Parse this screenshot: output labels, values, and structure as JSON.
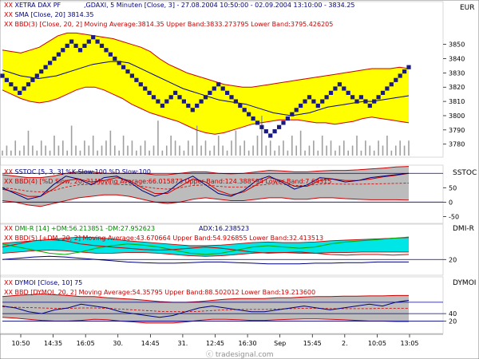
{
  "header": {
    "instrument": "XETRA DAX PF",
    "series_desc": ",GDAXI, 5 Minuten [Close, 3] - 27.08.2004 10:50:00 - 02.09.2004 13:10:00 - 3834.25",
    "currency": "EUR",
    "sma_legend": "SMA [Close, 20] 3814.35",
    "bbd_legend": "BBD(3) [Close, 20, 2] Moving Average:3814.35 Upper Band:3833.273795 Lower Band:3795.426205"
  },
  "panels": {
    "sstoc": {
      "name": "SSTOC",
      "legend1": "SSTOC [5, 3, 3] %K Slow:100 %D Slow:100",
      "legend2": "BBD(4) [%D Slow, 20, 2] Moving Average:66.015873 Upper Band:124.388594 Lower Band:7.64315"
    },
    "dmi": {
      "name": "DMI-R",
      "legend1": "DMI-R [14] +DM:56.213851 -DM:27.952623",
      "adx": "ADX:16.238523",
      "legend2": "BBD(5) [+DM, 20, 2] Moving Average:43.670664 Upper Band:54.926855 Lower Band:32.413513"
    },
    "dymoi": {
      "name": "DYMOI",
      "legend1": "DYMOI [Close, 10] 75",
      "legend2": "BBD [DYMOI, 20, 2] Moving Average:54.35795 Upper Band:88.502012 Lower Band:19.213600"
    }
  },
  "watermark": "tradesignal.com",
  "colors": {
    "band_fill": "#ffff00",
    "band_line": "#cc0000",
    "price_box": "#1a1a80",
    "sma": "#000080",
    "volume": "#a0a0a0",
    "grey_band": "#bcbcbc",
    "cyan_band": "#00e5e5",
    "plus_dm": "#00aa00",
    "minus_dm": "#cc0000",
    "adx": "#000080"
  },
  "chart_data": [
    {
      "type": "line",
      "title": "XETRA DAX PF ,GDAXI, 5 Minuten",
      "ylabel": "EUR",
      "ylim": [
        3772,
        3861
      ],
      "y_ticks": [
        3780,
        3790,
        3800,
        3810,
        3820,
        3830,
        3840,
        3850
      ],
      "x_tick_labels": [
        "10:50",
        "14:35",
        "16:05",
        "30.",
        "14:45",
        "31.",
        "12:45",
        "16:30",
        "Sep",
        "15:45",
        "2.",
        "10:05",
        "13:05"
      ],
      "series": [
        {
          "name": "Close",
          "values": [
            3828,
            3825,
            3822,
            3819,
            3816,
            3819,
            3822,
            3825,
            3828,
            3831,
            3834,
            3837,
            3840,
            3843,
            3846,
            3849,
            3852,
            3849,
            3846,
            3849,
            3852,
            3855,
            3852,
            3849,
            3846,
            3843,
            3840,
            3837,
            3834,
            3831,
            3828,
            3825,
            3822,
            3819,
            3816,
            3813,
            3810,
            3807,
            3810,
            3813,
            3816,
            3813,
            3810,
            3807,
            3804,
            3807,
            3810,
            3813,
            3816,
            3819,
            3822,
            3819,
            3816,
            3813,
            3810,
            3807,
            3804,
            3801,
            3798,
            3795,
            3792,
            3789,
            3786,
            3789,
            3792,
            3795,
            3798,
            3801,
            3804,
            3807,
            3810,
            3813,
            3810,
            3807,
            3810,
            3813,
            3816,
            3819,
            3822,
            3819,
            3816,
            3813,
            3810,
            3813,
            3810,
            3807,
            3810,
            3813,
            3816,
            3819,
            3822,
            3825,
            3828,
            3831,
            3834
          ]
        },
        {
          "name": "SMA",
          "values": [
            3832,
            3830,
            3828,
            3827,
            3826,
            3827,
            3828,
            3830,
            3832,
            3834,
            3836,
            3837,
            3838,
            3838,
            3837,
            3834,
            3831,
            3828,
            3825,
            3822,
            3819,
            3817,
            3815,
            3813,
            3811,
            3810,
            3809,
            3808,
            3806,
            3804,
            3802,
            3801,
            3800,
            3801,
            3802,
            3804,
            3806,
            3807,
            3808,
            3809,
            3810,
            3810,
            3811,
            3812,
            3813,
            3814
          ]
        },
        {
          "name": "Upper Band",
          "values": [
            3846,
            3845,
            3844,
            3846,
            3848,
            3852,
            3856,
            3858,
            3858,
            3857,
            3856,
            3855,
            3854,
            3852,
            3850,
            3848,
            3845,
            3840,
            3836,
            3833,
            3830,
            3828,
            3826,
            3824,
            3822,
            3821,
            3820,
            3820,
            3821,
            3822,
            3823,
            3824,
            3825,
            3826,
            3827,
            3828,
            3829,
            3830,
            3831,
            3832,
            3833,
            3833,
            3833,
            3834,
            3833
          ]
        },
        {
          "name": "Lower Band",
          "values": [
            3818,
            3815,
            3812,
            3810,
            3809,
            3810,
            3812,
            3815,
            3818,
            3820,
            3820,
            3818,
            3815,
            3812,
            3808,
            3805,
            3802,
            3800,
            3798,
            3796,
            3793,
            3790,
            3788,
            3787,
            3788,
            3790,
            3792,
            3794,
            3795,
            3796,
            3797,
            3797,
            3797,
            3796,
            3795,
            3795,
            3794,
            3795,
            3796,
            3798,
            3799,
            3798,
            3797,
            3796,
            3795
          ]
        }
      ],
      "volume": [
        1,
        2,
        1,
        3,
        1,
        2,
        5,
        2,
        1,
        3,
        2,
        1,
        4,
        2,
        3,
        1,
        6,
        2,
        1,
        3,
        2,
        4,
        1,
        2,
        3,
        5,
        2,
        1,
        4,
        2,
        3,
        1,
        2,
        3,
        1,
        2,
        7,
        1,
        2,
        4,
        3,
        2,
        1,
        3,
        2,
        6,
        2,
        3,
        1,
        2,
        4,
        2,
        1,
        3,
        5,
        2,
        3,
        1,
        2,
        4,
        8,
        2,
        3,
        1,
        2,
        3,
        1,
        4,
        2,
        5,
        1,
        2,
        3,
        1,
        4,
        2,
        3,
        1,
        2,
        3,
        1,
        2,
        4,
        1,
        3,
        2,
        1,
        3,
        2,
        4,
        1,
        2,
        3,
        2,
        3
      ]
    },
    {
      "type": "line",
      "title": "SSTOC [5, 3, 3]",
      "ylim": [
        -60,
        120
      ],
      "y_ticks": [
        -50,
        0,
        50
      ],
      "series": [
        {
          "name": "%K Slow",
          "values": [
            50,
            30,
            10,
            20,
            60,
            90,
            80,
            60,
            85,
            90,
            70,
            40,
            20,
            35,
            70,
            90,
            60,
            30,
            20,
            40,
            75,
            90,
            70,
            45,
            60,
            85,
            80,
            70,
            75,
            85,
            90,
            95,
            100
          ]
        },
        {
          "name": "%D Slow",
          "values": [
            45,
            35,
            20,
            20,
            45,
            75,
            80,
            70,
            75,
            85,
            75,
            50,
            30,
            30,
            55,
            80,
            70,
            40,
            25,
            35,
            60,
            85,
            75,
            55,
            55,
            75,
            80,
            75,
            75,
            80,
            88,
            93,
            100
          ]
        },
        {
          "name": "Upper Band",
          "values": [
            95,
            90,
            85,
            85,
            90,
            100,
            105,
            105,
            100,
            100,
            100,
            100,
            95,
            95,
            100,
            105,
            105,
            100,
            98,
            100,
            105,
            110,
            108,
            105,
            105,
            108,
            110,
            110,
            112,
            115,
            118,
            122,
            124
          ]
        },
        {
          "name": "Lower Band",
          "values": [
            5,
            0,
            -10,
            -15,
            -5,
            5,
            15,
            20,
            25,
            25,
            20,
            10,
            0,
            -5,
            0,
            10,
            15,
            10,
            5,
            5,
            10,
            15,
            15,
            10,
            10,
            15,
            15,
            12,
            10,
            8,
            8,
            8,
            7
          ]
        },
        {
          "name": "Moving Average",
          "values": [
            50,
            45,
            38,
            35,
            40,
            52,
            60,
            62,
            62,
            62,
            60,
            55,
            48,
            45,
            50,
            58,
            60,
            55,
            52,
            52,
            58,
            62,
            62,
            58,
            58,
            62,
            63,
            62,
            62,
            63,
            64,
            65,
            66
          ]
        }
      ],
      "hlines": [
        0,
        100
      ]
    },
    {
      "type": "area",
      "title": "DMI-R [14]",
      "ylim": [
        5,
        65
      ],
      "y_ticks": [
        20
      ],
      "series": [
        {
          "name": "+DM",
          "values": [
            45,
            40,
            35,
            30,
            28,
            32,
            38,
            42,
            45,
            43,
            40,
            35,
            30,
            28,
            30,
            35,
            40,
            42,
            40,
            38,
            40,
            45,
            48,
            50,
            52,
            54,
            56
          ]
        },
        {
          "name": "-DM",
          "values": [
            40,
            45,
            50,
            52,
            50,
            45,
            42,
            40,
            38,
            36,
            35,
            36,
            38,
            40,
            38,
            35,
            32,
            30,
            31,
            32,
            30,
            28,
            27,
            28,
            28,
            27,
            28
          ]
        },
        {
          "name": "ADX",
          "values": [
            20,
            22,
            24,
            25,
            24,
            22,
            20,
            18,
            16,
            15,
            14,
            14,
            15,
            16,
            16,
            15,
            14,
            13,
            13,
            13,
            14,
            14,
            15,
            15,
            16,
            16,
            16
          ]
        },
        {
          "name": "Upper Band",
          "values": [
            46,
            48,
            50,
            52,
            54,
            56,
            55,
            53,
            50,
            48,
            46,
            44,
            42,
            42,
            43,
            45,
            47,
            48,
            47,
            47,
            48,
            50,
            51,
            52,
            53,
            54,
            55
          ]
        },
        {
          "name": "Lower Band",
          "values": [
            30,
            32,
            34,
            35,
            34,
            32,
            30,
            30,
            31,
            31,
            30,
            28,
            26,
            25,
            26,
            28,
            30,
            31,
            31,
            30,
            30,
            31,
            31,
            32,
            32,
            32,
            32
          ]
        }
      ],
      "hlines": [
        20
      ]
    },
    {
      "type": "line",
      "title": "DYMOI [Close, 10]",
      "ylim": [
        0,
        110
      ],
      "y_ticks": [
        20,
        40
      ],
      "series": [
        {
          "name": "DYMOI",
          "values": [
            60,
            55,
            45,
            40,
            50,
            55,
            65,
            60,
            55,
            45,
            40,
            35,
            30,
            35,
            45,
            55,
            60,
            55,
            50,
            45,
            45,
            50,
            55,
            60,
            55,
            50,
            55,
            60,
            65,
            60,
            70,
            75
          ]
        },
        {
          "name": "Upper Band",
          "values": [
            85,
            88,
            90,
            92,
            90,
            88,
            85,
            85,
            82,
            80,
            78,
            75,
            72,
            70,
            70,
            72,
            75,
            78,
            80,
            80,
            80,
            82,
            82,
            84,
            85,
            85,
            86,
            86,
            87,
            87,
            88,
            88
          ]
        },
        {
          "name": "Lower Band",
          "values": [
            30,
            28,
            25,
            22,
            20,
            20,
            22,
            25,
            24,
            20,
            18,
            15,
            15,
            15,
            18,
            22,
            25,
            25,
            24,
            22,
            22,
            24,
            25,
            26,
            26,
            25,
            24,
            22,
            20,
            20,
            19,
            19
          ]
        },
        {
          "name": "Moving Average",
          "values": [
            58,
            57,
            56,
            55,
            54,
            54,
            55,
            55,
            54,
            52,
            50,
            48,
            46,
            45,
            45,
            46,
            48,
            50,
            51,
            51,
            51,
            52,
            53,
            54,
            54,
            53,
            53,
            53,
            53,
            54,
            54,
            54
          ]
        }
      ],
      "hlines": [
        20,
        40,
        70
      ]
    }
  ]
}
